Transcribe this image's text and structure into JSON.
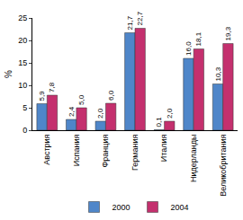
{
  "chart_data": {
    "type": "bar",
    "categories": [
      "Австрия",
      "Испания",
      "Франция",
      "Германия",
      "Италия",
      "Нидерланды",
      "Великобритания"
    ],
    "series": [
      {
        "name": "2000",
        "color": "#4f86c9",
        "values": [
          5.9,
          2.4,
          2.0,
          21.7,
          0.1,
          16.0,
          10.3
        ],
        "value_labels": [
          "5,9",
          "2,4",
          "2,0",
          "21,7",
          "0,1",
          "16,0",
          "10,3"
        ]
      },
      {
        "name": "2004",
        "color": "#c4306e",
        "values": [
          7.8,
          5.0,
          6.0,
          22.7,
          2.0,
          18.1,
          19.3
        ],
        "value_labels": [
          "7,8",
          "5,0",
          "6,0",
          "22,7",
          "2,0",
          "18,1",
          "19,3"
        ]
      }
    ],
    "y_label": "%",
    "ylim": [
      0,
      25
    ],
    "yticks": [
      0,
      5,
      10,
      15,
      20,
      25
    ],
    "grid": false,
    "legend": "bottom",
    "data_labels": true
  }
}
